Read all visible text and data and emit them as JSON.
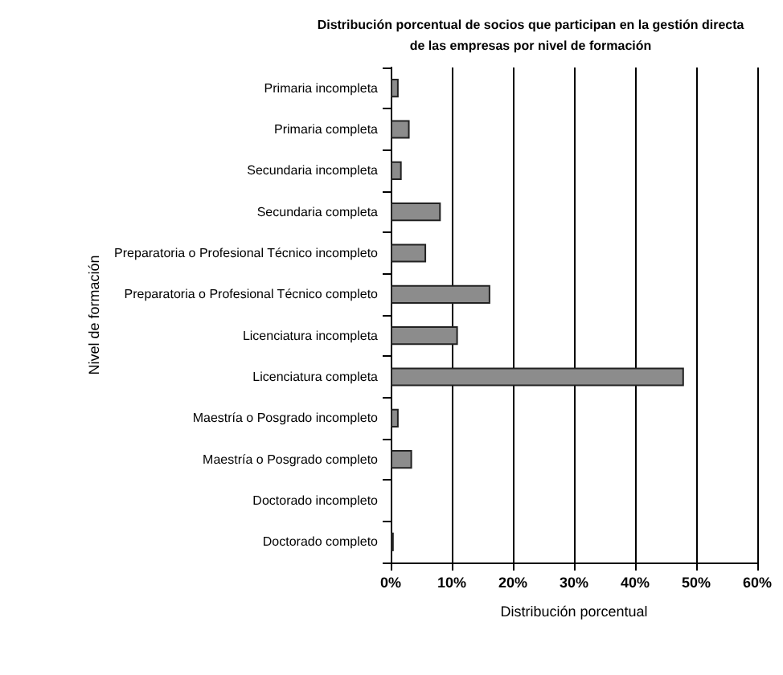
{
  "chart_data": {
    "type": "bar",
    "orientation": "horizontal",
    "title": "Distribución porcentual de socios que participan en la gestión directa\nde las empresas por nivel de formación",
    "xlabel": "Distribución porcentual",
    "ylabel": "Nivel de formación",
    "categories": [
      "Primaria incompleta",
      "Primaria completa",
      "Secundaria incompleta",
      "Secundaria completa",
      "Preparatoria o Profesional Técnico incompleto",
      "Preparatoria o Profesional Técnico completo",
      "Licenciatura incompleta",
      "Licenciatura completa",
      "Maestría o Posgrado incompleto",
      "Maestría o Posgrado completo",
      "Doctorado incompleto",
      "Doctorado completo"
    ],
    "values": [
      1.3,
      3.1,
      1.8,
      8.2,
      5.8,
      16.3,
      11,
      48,
      1.3,
      3.5,
      0,
      0.5
    ],
    "color": "#8c8c8c",
    "xlim": [
      0,
      60
    ],
    "xticks": [
      {
        "value": 0,
        "label": "0%"
      },
      {
        "value": 10,
        "label": "10%"
      },
      {
        "value": 20,
        "label": "20%"
      },
      {
        "value": 30,
        "label": "30%"
      },
      {
        "value": 40,
        "label": "40%"
      },
      {
        "value": 50,
        "label": "50%"
      },
      {
        "value": 60,
        "label": "60%"
      }
    ],
    "grid": "x"
  }
}
